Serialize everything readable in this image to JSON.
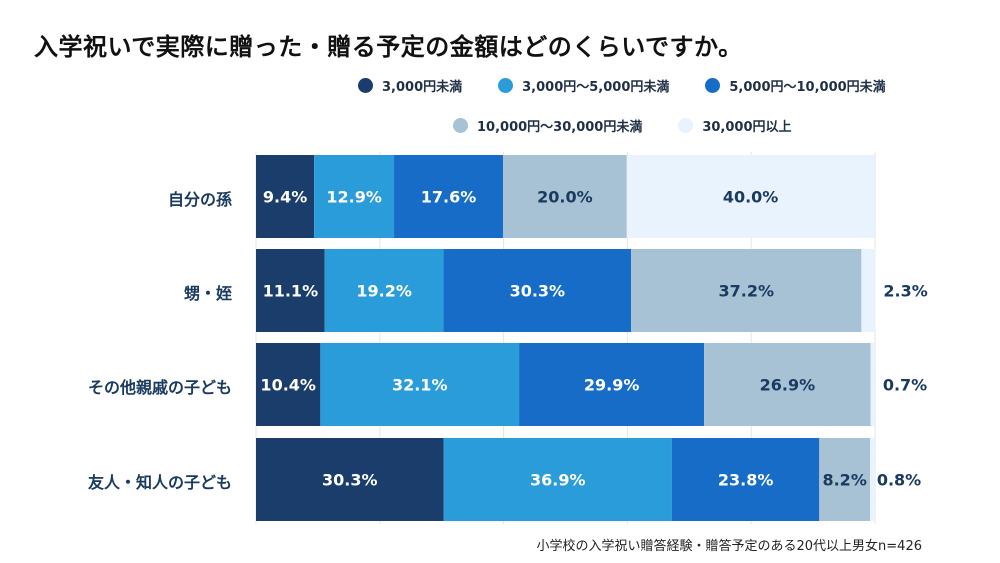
{
  "chart_data": {
    "type": "bar",
    "orientation": "horizontal",
    "stacked": true,
    "title": "入学祝いで実際に贈った・贈る予定の金額はどのくらいですか。",
    "categories": [
      "自分の孫",
      "甥・姪",
      "その他親戚の子ども",
      "友人・知人の子ども"
    ],
    "series": [
      {
        "name": "3,000円未満",
        "color": "#1a3d6b",
        "label_color": "#ffffff",
        "values": [
          9.4,
          11.1,
          10.4,
          30.3
        ]
      },
      {
        "name": "3,000円〜5,000円未満",
        "color": "#2b9cda",
        "label_color": "#ffffff",
        "values": [
          12.9,
          19.2,
          32.1,
          36.9
        ]
      },
      {
        "name": "5,000円〜10,000円未満",
        "color": "#166cc6",
        "label_color": "#ffffff",
        "values": [
          17.6,
          30.3,
          29.9,
          23.8
        ]
      },
      {
        "name": "10,000円〜30,000円未満",
        "color": "#a7c1d5",
        "label_color": "#1a3a60",
        "values": [
          20.0,
          37.2,
          26.9,
          8.2
        ]
      },
      {
        "name": "30,000円以上",
        "color": "#e8f3fd",
        "label_color": "#1a3a60",
        "values": [
          40.0,
          2.3,
          0.7,
          0.8
        ]
      }
    ],
    "value_suffix": "%",
    "xlim": [
      0,
      100
    ],
    "grid": true,
    "legend_position": "top",
    "note": "小学校の入学祝い贈答経験・贈答予定のある20代以上男女n=426"
  }
}
